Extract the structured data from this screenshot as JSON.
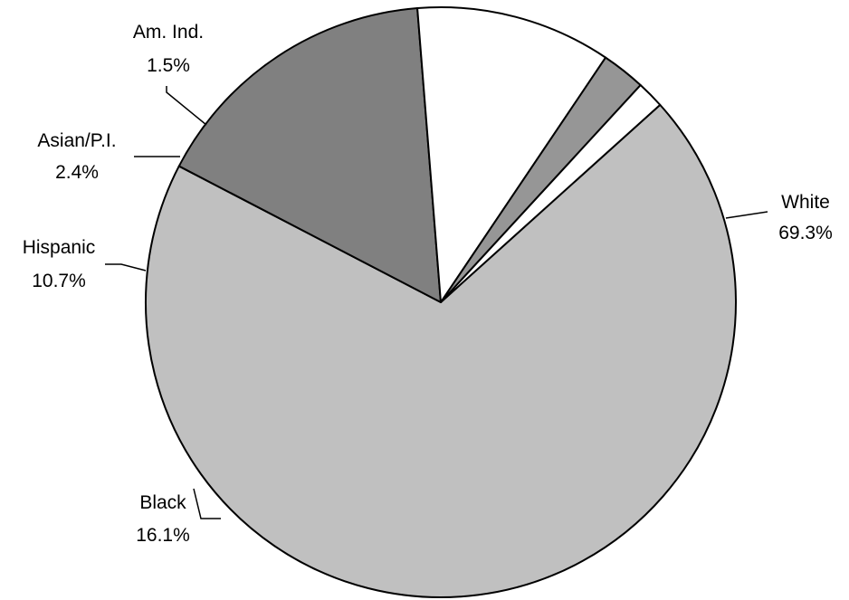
{
  "chart_data": {
    "type": "pie",
    "title": "",
    "slices": [
      {
        "label": "White",
        "value": 69.3,
        "display": "69.3%",
        "color": "#c0c0c0"
      },
      {
        "label": "Black",
        "value": 16.1,
        "display": "16.1%",
        "color": "#808080"
      },
      {
        "label": "Hispanic",
        "value": 10.7,
        "display": "10.7%",
        "color": "#ffffff"
      },
      {
        "label": "Asian/P.I.",
        "value": 2.4,
        "display": "2.4%",
        "color": "#969696"
      },
      {
        "label": "Am. Ind.",
        "value": 1.5,
        "display": "1.5%",
        "color": "#ffffff"
      }
    ],
    "legend": "none",
    "labels": "outside with leader lines"
  }
}
